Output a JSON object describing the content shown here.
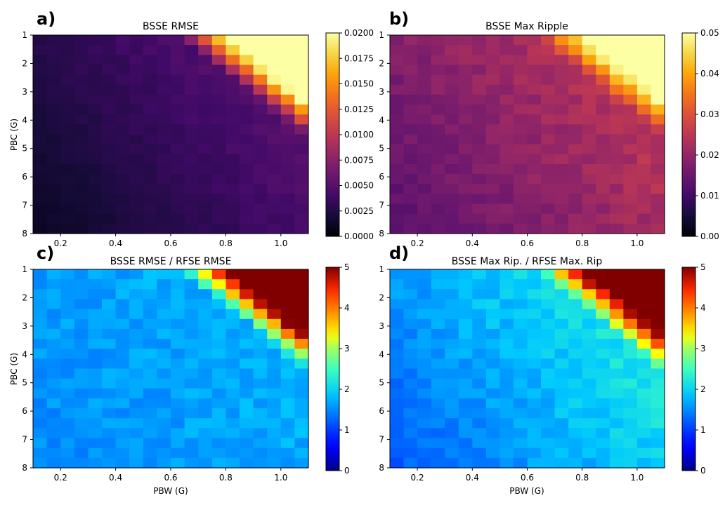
{
  "figure": {
    "xlabel": "PBW (G)",
    "ylabel": "PBC (G)"
  },
  "chart_data": [
    {
      "type": "heatmap",
      "panel": "a)",
      "title": "BSSE RMSE",
      "xlabel": "",
      "ylabel": "PBC (G)",
      "xlim": [
        0.1,
        1.1
      ],
      "ylim": [
        8,
        1
      ],
      "x_ticks": [
        "0.2",
        "0.4",
        "0.6",
        "0.8",
        "1.0"
      ],
      "y_ticks": [
        "1",
        "2",
        "3",
        "4",
        "5",
        "6",
        "7",
        "8"
      ],
      "grid_shape": [
        20,
        20
      ],
      "colormap": "inferno",
      "clim": [
        0,
        0.02
      ],
      "colorbar_ticks": [
        "0.0000",
        "0.0025",
        "0.0050",
        "0.0075",
        "0.0100",
        "0.0125",
        "0.0150",
        "0.0175",
        "0.0200"
      ],
      "baseline_low": 0.0012,
      "baseline_high": 0.0058,
      "saturated_corner": "top-right",
      "saturated_value": 0.02
    },
    {
      "type": "heatmap",
      "panel": "b)",
      "title": "BSSE Max Ripple",
      "xlabel": "",
      "ylabel": "",
      "xlim": [
        0.1,
        1.1
      ],
      "ylim": [
        8,
        1
      ],
      "x_ticks": [
        "0.2",
        "0.4",
        "0.6",
        "0.8",
        "1.0"
      ],
      "y_ticks": [
        "1",
        "2",
        "3",
        "4",
        "5",
        "6",
        "7",
        "8"
      ],
      "grid_shape": [
        20,
        20
      ],
      "colormap": "inferno",
      "clim": [
        0,
        0.05
      ],
      "colorbar_ticks": [
        "0.00",
        "0.01",
        "0.02",
        "0.03",
        "0.04",
        "0.05"
      ],
      "baseline_low": 0.013,
      "baseline_high": 0.027,
      "saturated_corner": "top-right",
      "saturated_value": 0.05
    },
    {
      "type": "heatmap",
      "panel": "c)",
      "title": "BSSE RMSE / RFSE RMSE",
      "xlabel": "PBW (G)",
      "ylabel": "PBC (G)",
      "xlim": [
        0.1,
        1.1
      ],
      "ylim": [
        8,
        1
      ],
      "x_ticks": [
        "0.2",
        "0.4",
        "0.6",
        "0.8",
        "1.0"
      ],
      "y_ticks": [
        "1",
        "2",
        "3",
        "4",
        "5",
        "6",
        "7",
        "8"
      ],
      "grid_shape": [
        20,
        20
      ],
      "colormap": "jet",
      "clim": [
        0,
        5
      ],
      "colorbar_ticks": [
        "0",
        "1",
        "2",
        "3",
        "4",
        "5"
      ],
      "baseline_low": 1.5,
      "baseline_high": 1.8,
      "saturated_corner": "top-right",
      "saturated_value": 5
    },
    {
      "type": "heatmap",
      "panel": "d)",
      "title": "BSSE Max Rip. / RFSE Max. Rip",
      "xlabel": "PBW (G)",
      "ylabel": "",
      "xlim": [
        0.1,
        1.1
      ],
      "ylim": [
        8,
        1
      ],
      "x_ticks": [
        "0.2",
        "0.4",
        "0.6",
        "0.8",
        "1.0"
      ],
      "y_ticks": [
        "1",
        "2",
        "3",
        "4",
        "5",
        "6",
        "7",
        "8"
      ],
      "grid_shape": [
        20,
        20
      ],
      "colormap": "jet",
      "clim": [
        0,
        5
      ],
      "colorbar_ticks": [
        "0",
        "1",
        "2",
        "3",
        "4",
        "5"
      ],
      "baseline_low": 1.2,
      "baseline_high": 2.4,
      "saturated_corner": "top-right",
      "saturated_value": 5
    }
  ]
}
